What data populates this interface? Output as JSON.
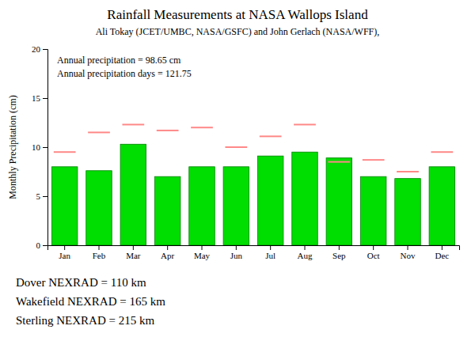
{
  "chart_data": {
    "type": "bar",
    "title": "Rainfall Measurements at NASA Wallops Island",
    "subtitle": "Ali Tokay (JCET/UMBC, NASA/GSFC) and John Gerlach (NASA/WFF),",
    "categories": [
      "Jan",
      "Feb",
      "Mar",
      "Apr",
      "May",
      "Jun",
      "Jul",
      "Aug",
      "Sep",
      "Oct",
      "Nov",
      "Dec"
    ],
    "series": [
      {
        "type": "bar",
        "color": "#00dd00",
        "values": [
          8.0,
          7.6,
          10.3,
          7.0,
          8.0,
          8.0,
          9.1,
          9.5,
          8.9,
          7.0,
          6.8,
          8.0
        ]
      },
      {
        "type": "scatter",
        "marker": "hline",
        "color": "#ff8888",
        "values": [
          9.5,
          11.5,
          12.3,
          11.7,
          12.0,
          10.0,
          11.1,
          12.3,
          8.5,
          8.7,
          7.5,
          9.5
        ]
      }
    ],
    "ylabel": "Monthly Precipitation (cm)",
    "ylim": [
      0,
      20
    ],
    "yticks": [
      0,
      5,
      10,
      15,
      20
    ],
    "grid": false,
    "annotations": [
      "Annual precipitation = 98.65 cm",
      "Annual precipitation days = 121.75",
      "Dover NEXRAD = 110 km",
      "Wakefield NEXRAD = 165 km",
      "Sterling NEXRAD = 215 km"
    ]
  }
}
